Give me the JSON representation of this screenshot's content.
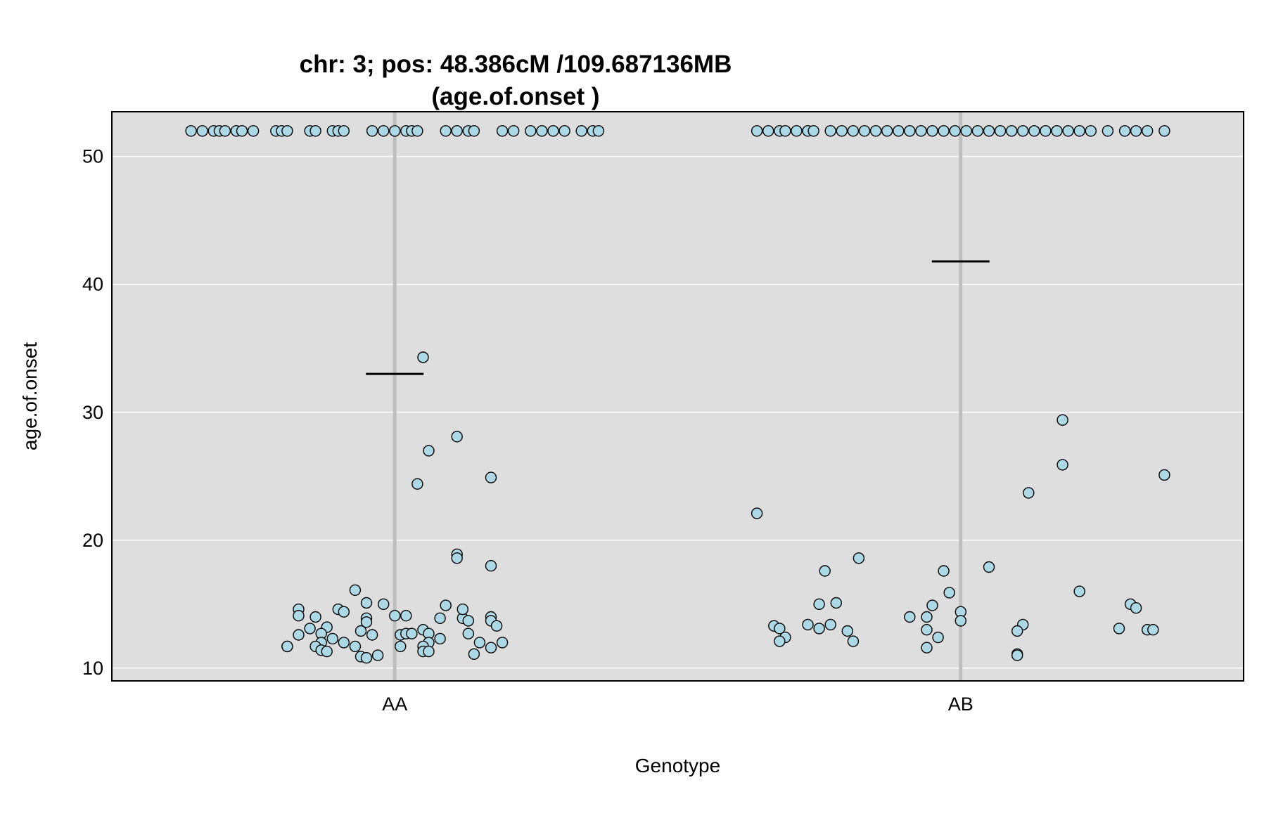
{
  "chart_data": {
    "type": "scatter",
    "title": [
      "chr: 3; pos: 48.386cM /109.687136MB",
      "(age.of.onset )"
    ],
    "xlabel": "Genotype",
    "ylabel": "age.of.onset",
    "categories": [
      "AA",
      "AB"
    ],
    "ylim": [
      9,
      53.5
    ],
    "yticks": [
      10,
      20,
      30,
      40,
      50
    ],
    "grid": true,
    "colors": {
      "panel_bg": "#dedede",
      "grid": "#ffffff",
      "category_line": "#bebebe",
      "point_fill": "#add8e6",
      "point_stroke": "#000000",
      "mean_line": "#000000"
    },
    "means": [
      {
        "category": "AA",
        "value": 33.0
      },
      {
        "category": "AB",
        "value": 41.8
      }
    ],
    "points": [
      {
        "category": "AA",
        "jitter": -0.36,
        "y": 52
      },
      {
        "category": "AA",
        "jitter": -0.34,
        "y": 52
      },
      {
        "category": "AA",
        "jitter": -0.32,
        "y": 52
      },
      {
        "category": "AA",
        "jitter": -0.31,
        "y": 52
      },
      {
        "category": "AA",
        "jitter": -0.3,
        "y": 52
      },
      {
        "category": "AA",
        "jitter": -0.28,
        "y": 52
      },
      {
        "category": "AA",
        "jitter": -0.27,
        "y": 52
      },
      {
        "category": "AA",
        "jitter": -0.25,
        "y": 52
      },
      {
        "category": "AA",
        "jitter": -0.21,
        "y": 52
      },
      {
        "category": "AA",
        "jitter": -0.2,
        "y": 52
      },
      {
        "category": "AA",
        "jitter": -0.19,
        "y": 52
      },
      {
        "category": "AA",
        "jitter": -0.15,
        "y": 52
      },
      {
        "category": "AA",
        "jitter": -0.14,
        "y": 52
      },
      {
        "category": "AA",
        "jitter": -0.11,
        "y": 52
      },
      {
        "category": "AA",
        "jitter": -0.1,
        "y": 52
      },
      {
        "category": "AA",
        "jitter": -0.09,
        "y": 52
      },
      {
        "category": "AA",
        "jitter": -0.04,
        "y": 52
      },
      {
        "category": "AA",
        "jitter": -0.02,
        "y": 52
      },
      {
        "category": "AA",
        "jitter": 0.0,
        "y": 52
      },
      {
        "category": "AA",
        "jitter": 0.02,
        "y": 52
      },
      {
        "category": "AA",
        "jitter": 0.03,
        "y": 52
      },
      {
        "category": "AA",
        "jitter": 0.04,
        "y": 52
      },
      {
        "category": "AA",
        "jitter": 0.09,
        "y": 52
      },
      {
        "category": "AA",
        "jitter": 0.11,
        "y": 52
      },
      {
        "category": "AA",
        "jitter": 0.13,
        "y": 52
      },
      {
        "category": "AA",
        "jitter": 0.14,
        "y": 52
      },
      {
        "category": "AA",
        "jitter": 0.19,
        "y": 52
      },
      {
        "category": "AA",
        "jitter": 0.21,
        "y": 52
      },
      {
        "category": "AA",
        "jitter": 0.24,
        "y": 52
      },
      {
        "category": "AA",
        "jitter": 0.26,
        "y": 52
      },
      {
        "category": "AA",
        "jitter": 0.28,
        "y": 52
      },
      {
        "category": "AA",
        "jitter": 0.3,
        "y": 52
      },
      {
        "category": "AA",
        "jitter": 0.33,
        "y": 52
      },
      {
        "category": "AA",
        "jitter": 0.35,
        "y": 52
      },
      {
        "category": "AA",
        "jitter": 0.36,
        "y": 52
      },
      {
        "category": "AA",
        "jitter": 0.05,
        "y": 34.3
      },
      {
        "category": "AA",
        "jitter": 0.11,
        "y": 28.1
      },
      {
        "category": "AA",
        "jitter": 0.06,
        "y": 27.0
      },
      {
        "category": "AA",
        "jitter": 0.17,
        "y": 24.9
      },
      {
        "category": "AA",
        "jitter": 0.04,
        "y": 24.4
      },
      {
        "category": "AA",
        "jitter": 0.11,
        "y": 18.9
      },
      {
        "category": "AA",
        "jitter": 0.11,
        "y": 18.6
      },
      {
        "category": "AA",
        "jitter": 0.17,
        "y": 18.0
      },
      {
        "category": "AA",
        "jitter": -0.07,
        "y": 16.1
      },
      {
        "category": "AA",
        "jitter": -0.02,
        "y": 15.0
      },
      {
        "category": "AA",
        "jitter": -0.05,
        "y": 15.1
      },
      {
        "category": "AA",
        "jitter": 0.09,
        "y": 14.9
      },
      {
        "category": "AA",
        "jitter": -0.1,
        "y": 14.6
      },
      {
        "category": "AA",
        "jitter": -0.09,
        "y": 14.4
      },
      {
        "category": "AA",
        "jitter": -0.17,
        "y": 14.6
      },
      {
        "category": "AA",
        "jitter": -0.17,
        "y": 14.1
      },
      {
        "category": "AA",
        "jitter": -0.14,
        "y": 14.0
      },
      {
        "category": "AA",
        "jitter": 0.0,
        "y": 14.1
      },
      {
        "category": "AA",
        "jitter": 0.02,
        "y": 14.1
      },
      {
        "category": "AA",
        "jitter": 0.08,
        "y": 13.9
      },
      {
        "category": "AA",
        "jitter": 0.12,
        "y": 13.9
      },
      {
        "category": "AA",
        "jitter": 0.12,
        "y": 14.6
      },
      {
        "category": "AA",
        "jitter": 0.17,
        "y": 14.0
      },
      {
        "category": "AA",
        "jitter": -0.05,
        "y": 13.9
      },
      {
        "category": "AA",
        "jitter": -0.05,
        "y": 13.6
      },
      {
        "category": "AA",
        "jitter": 0.13,
        "y": 13.7
      },
      {
        "category": "AA",
        "jitter": 0.17,
        "y": 13.7
      },
      {
        "category": "AA",
        "jitter": -0.12,
        "y": 13.2
      },
      {
        "category": "AA",
        "jitter": -0.15,
        "y": 13.1
      },
      {
        "category": "AA",
        "jitter": 0.18,
        "y": 13.3
      },
      {
        "category": "AA",
        "jitter": -0.06,
        "y": 12.9
      },
      {
        "category": "AA",
        "jitter": 0.05,
        "y": 13.0
      },
      {
        "category": "AA",
        "jitter": -0.17,
        "y": 12.6
      },
      {
        "category": "AA",
        "jitter": -0.13,
        "y": 12.7
      },
      {
        "category": "AA",
        "jitter": -0.04,
        "y": 12.6
      },
      {
        "category": "AA",
        "jitter": 0.01,
        "y": 12.6
      },
      {
        "category": "AA",
        "jitter": 0.02,
        "y": 12.7
      },
      {
        "category": "AA",
        "jitter": 0.03,
        "y": 12.7
      },
      {
        "category": "AA",
        "jitter": 0.06,
        "y": 12.7
      },
      {
        "category": "AA",
        "jitter": 0.13,
        "y": 12.7
      },
      {
        "category": "AA",
        "jitter": -0.11,
        "y": 12.3
      },
      {
        "category": "AA",
        "jitter": 0.08,
        "y": 12.3
      },
      {
        "category": "AA",
        "jitter": -0.09,
        "y": 12.0
      },
      {
        "category": "AA",
        "jitter": -0.13,
        "y": 12.0
      },
      {
        "category": "AA",
        "jitter": 0.06,
        "y": 12.0
      },
      {
        "category": "AA",
        "jitter": 0.15,
        "y": 12.0
      },
      {
        "category": "AA",
        "jitter": 0.19,
        "y": 12.0
      },
      {
        "category": "AA",
        "jitter": -0.19,
        "y": 11.7
      },
      {
        "category": "AA",
        "jitter": -0.19,
        "y": 11.7
      },
      {
        "category": "AA",
        "jitter": -0.14,
        "y": 11.7
      },
      {
        "category": "AA",
        "jitter": -0.07,
        "y": 11.7
      },
      {
        "category": "AA",
        "jitter": 0.01,
        "y": 11.7
      },
      {
        "category": "AA",
        "jitter": 0.05,
        "y": 11.7
      },
      {
        "category": "AA",
        "jitter": 0.17,
        "y": 11.6
      },
      {
        "category": "AA",
        "jitter": -0.13,
        "y": 11.4
      },
      {
        "category": "AA",
        "jitter": -0.12,
        "y": 11.3
      },
      {
        "category": "AA",
        "jitter": 0.05,
        "y": 11.3
      },
      {
        "category": "AA",
        "jitter": 0.06,
        "y": 11.3
      },
      {
        "category": "AA",
        "jitter": -0.06,
        "y": 10.9
      },
      {
        "category": "AA",
        "jitter": -0.03,
        "y": 11.0
      },
      {
        "category": "AA",
        "jitter": 0.14,
        "y": 11.1
      },
      {
        "category": "AA",
        "jitter": -0.05,
        "y": 10.8
      },
      {
        "category": "AB",
        "jitter": -0.36,
        "y": 52
      },
      {
        "category": "AB",
        "jitter": -0.34,
        "y": 52
      },
      {
        "category": "AB",
        "jitter": -0.32,
        "y": 52
      },
      {
        "category": "AB",
        "jitter": -0.31,
        "y": 52
      },
      {
        "category": "AB",
        "jitter": -0.29,
        "y": 52
      },
      {
        "category": "AB",
        "jitter": -0.27,
        "y": 52
      },
      {
        "category": "AB",
        "jitter": -0.26,
        "y": 52
      },
      {
        "category": "AB",
        "jitter": -0.23,
        "y": 52
      },
      {
        "category": "AB",
        "jitter": -0.21,
        "y": 52
      },
      {
        "category": "AB",
        "jitter": -0.19,
        "y": 52
      },
      {
        "category": "AB",
        "jitter": -0.17,
        "y": 52
      },
      {
        "category": "AB",
        "jitter": -0.15,
        "y": 52
      },
      {
        "category": "AB",
        "jitter": -0.13,
        "y": 52
      },
      {
        "category": "AB",
        "jitter": -0.11,
        "y": 52
      },
      {
        "category": "AB",
        "jitter": -0.09,
        "y": 52
      },
      {
        "category": "AB",
        "jitter": -0.07,
        "y": 52
      },
      {
        "category": "AB",
        "jitter": -0.05,
        "y": 52
      },
      {
        "category": "AB",
        "jitter": -0.03,
        "y": 52
      },
      {
        "category": "AB",
        "jitter": -0.01,
        "y": 52
      },
      {
        "category": "AB",
        "jitter": 0.01,
        "y": 52
      },
      {
        "category": "AB",
        "jitter": 0.03,
        "y": 52
      },
      {
        "category": "AB",
        "jitter": 0.05,
        "y": 52
      },
      {
        "category": "AB",
        "jitter": 0.07,
        "y": 52
      },
      {
        "category": "AB",
        "jitter": 0.09,
        "y": 52
      },
      {
        "category": "AB",
        "jitter": 0.11,
        "y": 52
      },
      {
        "category": "AB",
        "jitter": 0.13,
        "y": 52
      },
      {
        "category": "AB",
        "jitter": 0.15,
        "y": 52
      },
      {
        "category": "AB",
        "jitter": 0.17,
        "y": 52
      },
      {
        "category": "AB",
        "jitter": 0.19,
        "y": 52
      },
      {
        "category": "AB",
        "jitter": 0.21,
        "y": 52
      },
      {
        "category": "AB",
        "jitter": 0.23,
        "y": 52
      },
      {
        "category": "AB",
        "jitter": 0.26,
        "y": 52
      },
      {
        "category": "AB",
        "jitter": 0.29,
        "y": 52
      },
      {
        "category": "AB",
        "jitter": 0.31,
        "y": 52
      },
      {
        "category": "AB",
        "jitter": 0.33,
        "y": 52
      },
      {
        "category": "AB",
        "jitter": 0.36,
        "y": 52
      },
      {
        "category": "AB",
        "jitter": 0.18,
        "y": 29.4
      },
      {
        "category": "AB",
        "jitter": 0.18,
        "y": 25.9
      },
      {
        "category": "AB",
        "jitter": 0.36,
        "y": 25.1
      },
      {
        "category": "AB",
        "jitter": 0.12,
        "y": 23.7
      },
      {
        "category": "AB",
        "jitter": -0.36,
        "y": 22.1
      },
      {
        "category": "AB",
        "jitter": -0.18,
        "y": 18.6
      },
      {
        "category": "AB",
        "jitter": -0.24,
        "y": 17.6
      },
      {
        "category": "AB",
        "jitter": -0.03,
        "y": 17.6
      },
      {
        "category": "AB",
        "jitter": 0.05,
        "y": 17.9
      },
      {
        "category": "AB",
        "jitter": 0.21,
        "y": 16.0
      },
      {
        "category": "AB",
        "jitter": -0.02,
        "y": 15.9
      },
      {
        "category": "AB",
        "jitter": -0.25,
        "y": 15.0
      },
      {
        "category": "AB",
        "jitter": -0.22,
        "y": 15.1
      },
      {
        "category": "AB",
        "jitter": -0.05,
        "y": 14.9
      },
      {
        "category": "AB",
        "jitter": 0.3,
        "y": 15.0
      },
      {
        "category": "AB",
        "jitter": 0.31,
        "y": 14.7
      },
      {
        "category": "AB",
        "jitter": -0.09,
        "y": 14.0
      },
      {
        "category": "AB",
        "jitter": -0.06,
        "y": 14.0
      },
      {
        "category": "AB",
        "jitter": 0.0,
        "y": 14.4
      },
      {
        "category": "AB",
        "jitter": 0.0,
        "y": 13.7
      },
      {
        "category": "AB",
        "jitter": -0.33,
        "y": 13.3
      },
      {
        "category": "AB",
        "jitter": -0.27,
        "y": 13.4
      },
      {
        "category": "AB",
        "jitter": -0.23,
        "y": 13.4
      },
      {
        "category": "AB",
        "jitter": 0.11,
        "y": 13.4
      },
      {
        "category": "AB",
        "jitter": -0.32,
        "y": 13.1
      },
      {
        "category": "AB",
        "jitter": -0.25,
        "y": 13.1
      },
      {
        "category": "AB",
        "jitter": -0.2,
        "y": 12.9
      },
      {
        "category": "AB",
        "jitter": -0.06,
        "y": 13.0
      },
      {
        "category": "AB",
        "jitter": 0.1,
        "y": 12.9
      },
      {
        "category": "AB",
        "jitter": 0.28,
        "y": 13.1
      },
      {
        "category": "AB",
        "jitter": 0.33,
        "y": 13.0
      },
      {
        "category": "AB",
        "jitter": 0.34,
        "y": 13.0
      },
      {
        "category": "AB",
        "jitter": -0.31,
        "y": 12.4
      },
      {
        "category": "AB",
        "jitter": -0.04,
        "y": 12.4
      },
      {
        "category": "AB",
        "jitter": -0.32,
        "y": 12.1
      },
      {
        "category": "AB",
        "jitter": -0.19,
        "y": 12.1
      },
      {
        "category": "AB",
        "jitter": -0.06,
        "y": 11.6
      },
      {
        "category": "AB",
        "jitter": 0.1,
        "y": 11.1
      },
      {
        "category": "AB",
        "jitter": 0.1,
        "y": 11.0
      }
    ]
  }
}
